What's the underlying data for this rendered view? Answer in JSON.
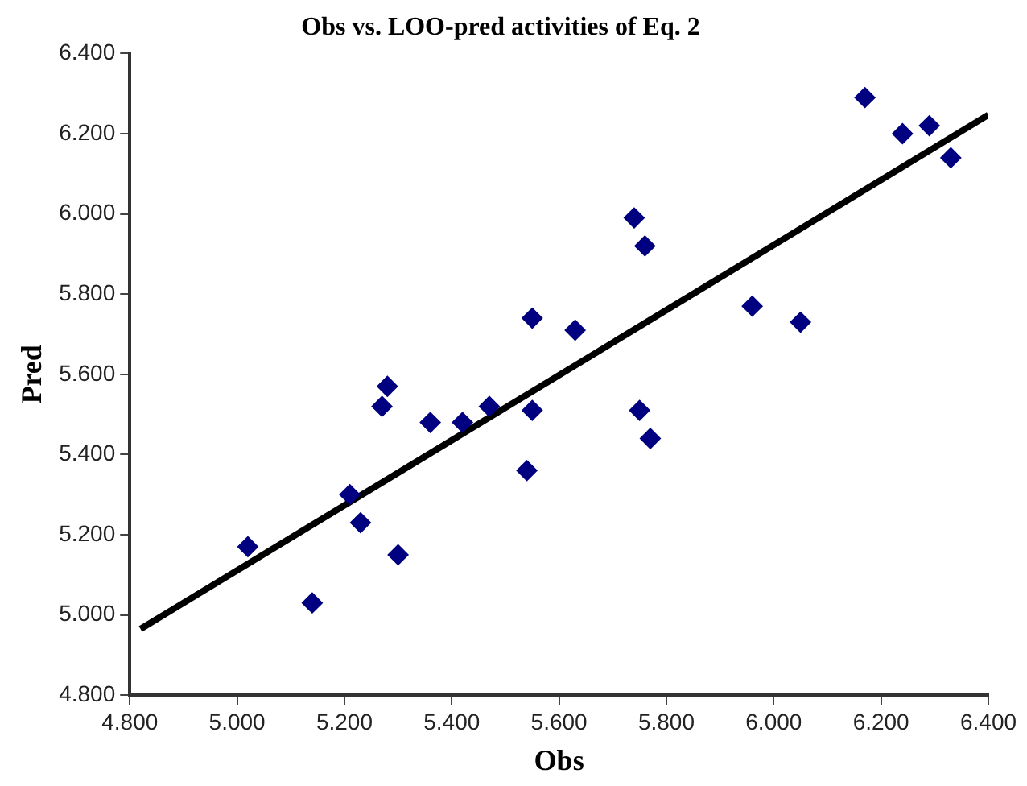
{
  "chart_data": {
    "type": "scatter",
    "title": "Obs vs. LOO-pred activities of Eq. 2",
    "xlabel": "Obs",
    "ylabel": "Pred",
    "xlim": [
      4.8,
      6.4
    ],
    "ylim": [
      4.8,
      6.4
    ],
    "xticks": [
      {
        "value": 4.8,
        "label": "4.800"
      },
      {
        "value": 5.0,
        "label": "5.000"
      },
      {
        "value": 5.2,
        "label": "5.200"
      },
      {
        "value": 5.4,
        "label": "5.400"
      },
      {
        "value": 5.6,
        "label": "5.600"
      },
      {
        "value": 5.8,
        "label": "5.800"
      },
      {
        "value": 6.0,
        "label": "6.000"
      },
      {
        "value": 6.2,
        "label": "6.200"
      },
      {
        "value": 6.4,
        "label": "6.400"
      }
    ],
    "yticks": [
      {
        "value": 4.8,
        "label": "4.800"
      },
      {
        "value": 5.0,
        "label": "5.000"
      },
      {
        "value": 5.2,
        "label": "5.200"
      },
      {
        "value": 5.4,
        "label": "5.400"
      },
      {
        "value": 5.6,
        "label": "5.600"
      },
      {
        "value": 5.8,
        "label": "5.800"
      },
      {
        "value": 6.0,
        "label": "6.000"
      },
      {
        "value": 6.2,
        "label": "6.200"
      },
      {
        "value": 6.4,
        "label": "6.400"
      }
    ],
    "grid": false,
    "legend": false,
    "series": [
      {
        "marker": "diamond",
        "color": "#000080",
        "x": [
          5.02,
          5.14,
          5.21,
          5.23,
          5.3,
          5.27,
          5.28,
          5.36,
          5.42,
          5.47,
          5.55,
          5.55,
          5.54,
          5.63,
          5.74,
          5.76,
          5.75,
          5.77,
          5.96,
          6.05,
          6.17,
          6.24,
          6.29,
          6.33
        ],
        "values": [
          5.17,
          5.03,
          5.3,
          5.23,
          5.15,
          5.52,
          5.57,
          5.48,
          5.48,
          5.52,
          5.74,
          5.51,
          5.36,
          5.71,
          5.99,
          5.92,
          5.51,
          5.44,
          5.77,
          5.73,
          6.29,
          6.2,
          6.22,
          6.14
        ]
      },
      {
        "type": "line",
        "color": "#000000",
        "x": [
          4.82,
          6.4
        ],
        "values": [
          4.965,
          6.247
        ]
      }
    ]
  }
}
